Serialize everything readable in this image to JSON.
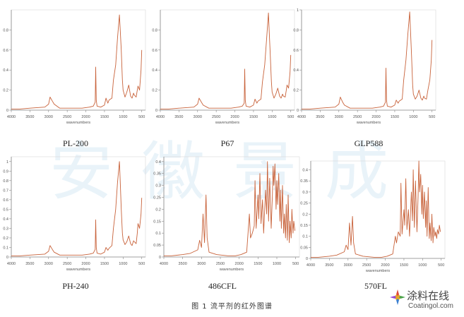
{
  "figure": {
    "caption": "图 1 流平剂的红外图谱",
    "watermark": "安徽景成",
    "logo": {
      "name": "涂料在线",
      "url_text": "Coatingol.com"
    }
  },
  "colors": {
    "spectrum": "#c8623a",
    "axis": "#888888",
    "tick_text": "#555555"
  },
  "chart_data": [
    {
      "type": "line",
      "label": "PL-200",
      "xlabel": "wavenumbers",
      "xlim": [
        4000,
        400
      ],
      "x_ticks": [
        "4000",
        "3500",
        "3000",
        "2500",
        "2000",
        "1500",
        "1000",
        "500"
      ],
      "ylim": [
        0,
        1.0
      ],
      "y_ticks": [
        "0",
        "0.2",
        "0.4",
        "0.6",
        "0.8"
      ],
      "series": [
        {
          "x": [
            4000,
            3800,
            3500,
            3100,
            3000,
            2960,
            2900,
            2850,
            2700,
            2400,
            2100,
            1900,
            1800,
            1750,
            1735,
            1720,
            1700,
            1600,
            1500,
            1460,
            1410,
            1380,
            1300,
            1260,
            1200,
            1150,
            1100,
            1080,
            1050,
            1020,
            1000,
            950,
            900,
            850,
            800,
            760,
            720,
            700,
            650,
            620,
            600,
            560,
            520,
            500
          ],
          "y": [
            0.01,
            0.01,
            0.02,
            0.03,
            0.06,
            0.13,
            0.09,
            0.06,
            0.02,
            0.02,
            0.02,
            0.03,
            0.04,
            0.08,
            0.43,
            0.1,
            0.04,
            0.03,
            0.05,
            0.12,
            0.07,
            0.1,
            0.12,
            0.3,
            0.45,
            0.72,
            0.95,
            0.82,
            0.6,
            0.3,
            0.2,
            0.13,
            0.18,
            0.25,
            0.14,
            0.12,
            0.17,
            0.15,
            0.13,
            0.2,
            0.24,
            0.2,
            0.4,
            0.6
          ]
        }
      ]
    },
    {
      "type": "line",
      "label": "P67",
      "xlabel": "wavenumbers",
      "xlim": [
        4000,
        400
      ],
      "x_ticks": [
        "4000",
        "3500",
        "3000",
        "2500",
        "2000",
        "1500",
        "1000",
        "500"
      ],
      "ylim": [
        0,
        1.0
      ],
      "y_ticks": [
        "0",
        "0.2",
        "0.4",
        "0.6",
        "0.8"
      ],
      "series": [
        {
          "x": [
            4000,
            3800,
            3500,
            3100,
            3000,
            2960,
            2900,
            2850,
            2700,
            2400,
            2100,
            1900,
            1800,
            1750,
            1735,
            1720,
            1700,
            1600,
            1500,
            1460,
            1410,
            1380,
            1300,
            1260,
            1200,
            1150,
            1100,
            1080,
            1050,
            1020,
            1000,
            950,
            900,
            850,
            800,
            760,
            720,
            700,
            650,
            620,
            600,
            560,
            520,
            500
          ],
          "y": [
            0.01,
            0.01,
            0.02,
            0.03,
            0.06,
            0.12,
            0.08,
            0.05,
            0.02,
            0.02,
            0.02,
            0.03,
            0.04,
            0.07,
            0.41,
            0.1,
            0.04,
            0.03,
            0.05,
            0.11,
            0.07,
            0.09,
            0.11,
            0.28,
            0.45,
            0.7,
            0.97,
            0.8,
            0.55,
            0.28,
            0.18,
            0.12,
            0.16,
            0.22,
            0.14,
            0.12,
            0.16,
            0.14,
            0.13,
            0.2,
            0.25,
            0.22,
            0.38,
            0.55
          ]
        }
      ]
    },
    {
      "type": "line",
      "label": "GLP588",
      "xlabel": "wavenumbers",
      "xlim": [
        4000,
        400
      ],
      "x_ticks": [
        "4000",
        "3500",
        "3000",
        "2500",
        "2000",
        "1500",
        "1000",
        "500"
      ],
      "ylim": [
        0,
        1.0
      ],
      "y_ticks": [
        "0",
        "0.2",
        "0.4",
        "0.6",
        "0.8",
        "1"
      ],
      "series": [
        {
          "x": [
            4000,
            3800,
            3500,
            3100,
            3000,
            2960,
            2900,
            2850,
            2700,
            2400,
            2100,
            1900,
            1800,
            1750,
            1735,
            1720,
            1700,
            1600,
            1500,
            1460,
            1410,
            1380,
            1300,
            1260,
            1200,
            1150,
            1100,
            1080,
            1050,
            1020,
            1000,
            950,
            900,
            850,
            800,
            760,
            720,
            700,
            650,
            620,
            600,
            560,
            520,
            500
          ],
          "y": [
            0.01,
            0.01,
            0.02,
            0.03,
            0.06,
            0.13,
            0.08,
            0.05,
            0.02,
            0.02,
            0.02,
            0.03,
            0.04,
            0.08,
            0.42,
            0.1,
            0.04,
            0.03,
            0.05,
            0.1,
            0.07,
            0.09,
            0.11,
            0.3,
            0.5,
            0.75,
            0.98,
            0.82,
            0.55,
            0.25,
            0.16,
            0.11,
            0.14,
            0.2,
            0.12,
            0.1,
            0.14,
            0.12,
            0.11,
            0.18,
            0.22,
            0.3,
            0.5,
            0.7
          ]
        }
      ]
    },
    {
      "type": "line",
      "label": "PH-240",
      "xlabel": "wavenumbers",
      "xlim": [
        4000,
        400
      ],
      "x_ticks": [
        "4000",
        "3500",
        "3000",
        "2500",
        "2000",
        "1500",
        "1000",
        "500"
      ],
      "ylim": [
        0,
        1.05
      ],
      "y_ticks": [
        "0",
        "0.1",
        "0.2",
        "0.3",
        "0.4",
        "0.5",
        "0.6",
        "0.7",
        "0.8",
        "0.9",
        "1"
      ],
      "series": [
        {
          "x": [
            4000,
            3800,
            3500,
            3100,
            3000,
            2960,
            2900,
            2850,
            2700,
            2400,
            2100,
            1900,
            1800,
            1750,
            1735,
            1720,
            1700,
            1600,
            1500,
            1460,
            1410,
            1380,
            1300,
            1260,
            1200,
            1150,
            1100,
            1080,
            1050,
            1020,
            1000,
            950,
            900,
            850,
            800,
            760,
            720,
            700,
            650,
            620,
            600,
            560,
            520,
            500
          ],
          "y": [
            0.01,
            0.01,
            0.02,
            0.03,
            0.06,
            0.12,
            0.08,
            0.05,
            0.02,
            0.02,
            0.02,
            0.03,
            0.04,
            0.08,
            0.39,
            0.1,
            0.04,
            0.03,
            0.05,
            0.1,
            0.07,
            0.09,
            0.12,
            0.3,
            0.5,
            0.78,
            1.0,
            0.82,
            0.5,
            0.25,
            0.18,
            0.13,
            0.16,
            0.22,
            0.14,
            0.12,
            0.17,
            0.16,
            0.14,
            0.25,
            0.35,
            0.3,
            0.45,
            0.62
          ]
        }
      ]
    },
    {
      "type": "line",
      "label": "486CFL",
      "xlabel": "wavenumbers",
      "xlim": [
        4000,
        400
      ],
      "x_ticks": [
        "4000",
        "3500",
        "3000",
        "2500",
        "2000",
        "1500",
        "1000",
        "500"
      ],
      "ylim": [
        0,
        0.42
      ],
      "y_ticks": [
        "0",
        "0.05",
        "0.1",
        "0.15",
        "0.2",
        "0.25",
        "0.3",
        "0.35",
        "0.4"
      ],
      "series": [
        {
          "x": [
            4000,
            3800,
            3500,
            3300,
            3100,
            3050,
            3000,
            2960,
            2920,
            2880,
            2850,
            2800,
            2600,
            2300,
            2100,
            1950,
            1800,
            1730,
            1700,
            1650,
            1600,
            1580,
            1550,
            1500,
            1480,
            1450,
            1420,
            1380,
            1350,
            1300,
            1270,
            1250,
            1220,
            1190,
            1150,
            1120,
            1100,
            1080,
            1050,
            1020,
            1000,
            980,
            950,
            920,
            900,
            880,
            850,
            820,
            800,
            770,
            750,
            720,
            700,
            670,
            650,
            620,
            600,
            570,
            550,
            520
          ],
          "y": [
            0.005,
            0.005,
            0.01,
            0.015,
            0.03,
            0.07,
            0.04,
            0.18,
            0.06,
            0.26,
            0.08,
            0.02,
            0.01,
            0.005,
            0.005,
            0.01,
            0.02,
            0.18,
            0.08,
            0.1,
            0.13,
            0.32,
            0.12,
            0.26,
            0.16,
            0.35,
            0.14,
            0.24,
            0.1,
            0.28,
            0.18,
            0.4,
            0.15,
            0.33,
            0.12,
            0.25,
            0.38,
            0.3,
            0.39,
            0.2,
            0.32,
            0.22,
            0.35,
            0.15,
            0.28,
            0.12,
            0.3,
            0.1,
            0.18,
            0.08,
            0.22,
            0.07,
            0.26,
            0.06,
            0.15,
            0.08,
            0.2,
            0.1,
            0.15,
            0.11
          ]
        }
      ]
    },
    {
      "type": "line",
      "label": "570FL",
      "xlabel": "wavenumbers",
      "xlim": [
        4000,
        400
      ],
      "x_ticks": [
        "4000",
        "3500",
        "3000",
        "2500",
        "2000",
        "1500",
        "1000",
        "500"
      ],
      "ylim": [
        0,
        0.44
      ],
      "y_ticks": [
        "0",
        "0.05",
        "0.1",
        "0.15",
        "0.2",
        "0.25",
        "0.3",
        "0.35",
        "0.4"
      ],
      "series": [
        {
          "x": [
            4000,
            3800,
            3500,
            3300,
            3100,
            3050,
            3000,
            2960,
            2920,
            2880,
            2850,
            2800,
            2600,
            2300,
            2100,
            1950,
            1800,
            1730,
            1700,
            1650,
            1600,
            1580,
            1550,
            1500,
            1480,
            1450,
            1420,
            1380,
            1350,
            1300,
            1270,
            1250,
            1220,
            1190,
            1150,
            1120,
            1100,
            1080,
            1050,
            1020,
            1000,
            980,
            950,
            920,
            900,
            880,
            850,
            820,
            800,
            770,
            750,
            720,
            700,
            670,
            650,
            620,
            600,
            570,
            550,
            520
          ],
          "y": [
            0.005,
            0.005,
            0.01,
            0.015,
            0.03,
            0.06,
            0.04,
            0.16,
            0.06,
            0.19,
            0.07,
            0.02,
            0.01,
            0.005,
            0.005,
            0.01,
            0.02,
            0.1,
            0.07,
            0.12,
            0.1,
            0.34,
            0.11,
            0.22,
            0.15,
            0.36,
            0.13,
            0.22,
            0.1,
            0.3,
            0.17,
            0.4,
            0.14,
            0.35,
            0.12,
            0.28,
            0.44,
            0.3,
            0.38,
            0.2,
            0.33,
            0.18,
            0.3,
            0.14,
            0.26,
            0.1,
            0.32,
            0.09,
            0.16,
            0.08,
            0.2,
            0.07,
            0.14,
            0.1,
            0.12,
            0.09,
            0.13,
            0.11,
            0.15,
            0.12
          ]
        }
      ]
    }
  ]
}
